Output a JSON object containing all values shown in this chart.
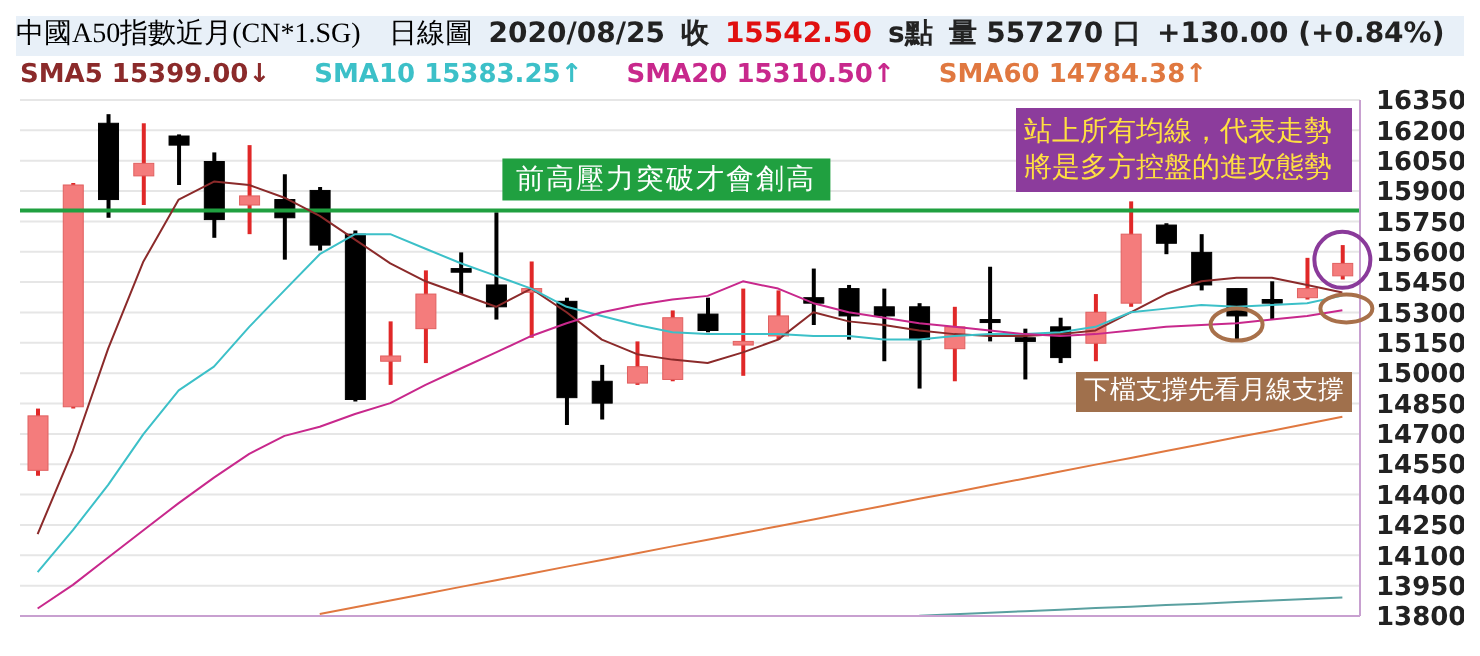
{
  "chart_data": {
    "type": "candlestick",
    "title": "中國A50指數近月(CN*1.SG)",
    "subtitle": "日線圖",
    "annotations": [
      "2020/08/25",
      "收",
      "15542.50",
      "s點",
      "量 557270 口",
      "+130.00 (+0.84%)",
      "站上所有均線，代表走勢將是多方控盤的進攻態勢",
      "下檔支撐先看月線支撐"
    ],
    "categories": [
      null,
      null,
      null,
      null,
      null,
      null,
      null,
      null,
      null,
      null,
      null,
      null,
      null,
      null,
      null,
      null,
      null,
      null,
      null,
      null,
      null,
      null,
      null,
      null,
      null,
      null,
      null,
      null,
      null,
      null,
      null,
      null,
      null,
      null,
      null,
      null,
      null,
      null
    ],
    "ohlc": [
      [
        14520,
        14825,
        14493,
        14789
      ],
      [
        14834,
        15940,
        14825,
        15930
      ],
      [
        16235,
        16280,
        15768,
        15858
      ],
      [
        15975,
        16235,
        15831,
        16037
      ],
      [
        16172,
        16180,
        15930,
        16127
      ],
      [
        16046,
        16091,
        15669,
        15759
      ],
      [
        15831,
        16127,
        15687,
        15876
      ],
      [
        15858,
        15983,
        15561,
        15768
      ],
      [
        15903,
        15920,
        15606,
        15633
      ],
      [
        15687,
        15705,
        14860,
        14870
      ],
      [
        15059,
        15256,
        14942,
        15085
      ],
      [
        15220,
        15508,
        15050,
        15391
      ],
      [
        15517,
        15597,
        15391,
        15499
      ],
      [
        15436,
        15795,
        15265,
        15328
      ],
      [
        15400,
        15552,
        15175,
        15418
      ],
      [
        15355,
        15373,
        14744,
        14879
      ],
      [
        14960,
        15041,
        14771,
        14852
      ],
      [
        14951,
        15157,
        14942,
        15032
      ],
      [
        14969,
        15310,
        14960,
        15274
      ],
      [
        15292,
        15373,
        15202,
        15211
      ],
      [
        15139,
        15418,
        14987,
        15157
      ],
      [
        15184,
        15409,
        15166,
        15283
      ],
      [
        15373,
        15517,
        15238,
        15346
      ],
      [
        15418,
        15436,
        15166,
        15283
      ],
      [
        15328,
        15418,
        15059,
        15283
      ],
      [
        15328,
        15346,
        14924,
        15166
      ],
      [
        15121,
        15328,
        14960,
        15229
      ],
      [
        15265,
        15526,
        15157,
        15256
      ],
      [
        15175,
        15220,
        14969,
        15157
      ],
      [
        15229,
        15274,
        15050,
        15077
      ],
      [
        15148,
        15391,
        15059,
        15301
      ],
      [
        15346,
        15849,
        15328,
        15687
      ],
      [
        15732,
        15741,
        15588,
        15642
      ],
      [
        15597,
        15687,
        15409,
        15436
      ],
      [
        15418,
        15418,
        15166,
        15283
      ],
      [
        15364,
        15454,
        15265,
        15346
      ],
      [
        15373,
        15570,
        15364,
        15418
      ],
      [
        15481,
        15633,
        15463,
        15542.5
      ]
    ],
    "colors": [
      "#f47c7c",
      "#f47c7c",
      "#000000",
      "#f47c7c",
      "#000000",
      "#000000",
      "#f47c7c",
      "#000000",
      "#000000",
      "#000000",
      "#f47c7c",
      "#f47c7c",
      "#000000",
      "#000000",
      "#f47c7c",
      "#000000",
      "#000000",
      "#f47c7c",
      "#f47c7c",
      "#000000",
      "#f47c7c",
      "#f47c7c",
      "#000000",
      "#000000",
      "#000000",
      "#000000",
      "#f47c7c",
      "#000000",
      "#000000",
      "#000000",
      "#f47c7c",
      "#f47c7c",
      "#000000",
      "#000000",
      "#000000",
      "#000000",
      "#f47c7c",
      "#f47c7c"
    ],
    "series": [
      {
        "type": "line",
        "name": "SMA5 15399.00↓",
        "color": "#8b2a2a",
        "values": [
          14205,
          14619,
          15121,
          15552,
          15858,
          15947,
          15930,
          15867,
          15777,
          15660,
          15543,
          15454,
          15391,
          15328,
          15418,
          15301,
          15166,
          15094,
          15067,
          15050,
          15103,
          15166,
          15301,
          15256,
          15238,
          15211,
          15193,
          15184,
          15184,
          15193,
          15211,
          15301,
          15391,
          15454,
          15472,
          15472,
          15436,
          15399
        ]
      },
      {
        "type": "line",
        "name": "SMA10 15383.25↑",
        "color": "#3cc0c8",
        "values": [
          14017,
          14224,
          14448,
          14699,
          14915,
          15032,
          15229,
          15409,
          15588,
          15687,
          15687,
          15615,
          15543,
          15481,
          15418,
          15328,
          15283,
          15238,
          15202,
          15193,
          15193,
          15193,
          15184,
          15184,
          15166,
          15166,
          15184,
          15193,
          15193,
          15202,
          15229,
          15301,
          15319,
          15337,
          15328,
          15337,
          15346,
          15383.25
        ]
      },
      {
        "type": "line",
        "name": "SMA20 15310.50↑",
        "color": "#c8288c",
        "values": [
          13837,
          13954,
          14089,
          14224,
          14358,
          14484,
          14601,
          14690,
          14735,
          14798,
          14852,
          14942,
          15023,
          15103,
          15184,
          15247,
          15301,
          15337,
          15364,
          15382,
          15454,
          15418,
          15346,
          15301,
          15274,
          15247,
          15229,
          15211,
          15193,
          15184,
          15193,
          15211,
          15229,
          15238,
          15247,
          15265,
          15283,
          15310.5
        ]
      },
      {
        "type": "line",
        "name": "SMA60 14784.38↑",
        "color": "#e07840",
        "values": [
          null,
          null,
          null,
          null,
          null,
          null,
          null,
          null,
          13810,
          13843,
          13877,
          13910,
          13944,
          13977,
          14010,
          14044,
          14077,
          14110,
          14144,
          14177,
          14210,
          14244,
          14277,
          14311,
          14345,
          14379,
          14412,
          14446,
          14480,
          14514,
          14548,
          14581,
          14615,
          14649,
          14683,
          14716,
          14750,
          14784.38
        ]
      },
      {
        "type": "line",
        "color": "#5aa0a0",
        "values": [
          null,
          null,
          null,
          null,
          null,
          null,
          null,
          null,
          null,
          null,
          null,
          null,
          null,
          null,
          null,
          null,
          null,
          null,
          null,
          null,
          null,
          null,
          null,
          null,
          null,
          13801,
          13809,
          13816,
          13824,
          13831,
          13839,
          13846,
          13854,
          13861,
          13869,
          13876,
          13884,
          13891
        ]
      }
    ],
    "ref_lines": [
      {
        "axis": "y",
        "value": 15804,
        "label": "前高壓力突破才會創高",
        "color": "#20a040"
      }
    ],
    "ylim": [
      13800,
      16350
    ],
    "yticks": [
      13800,
      13950,
      14100,
      14250,
      14400,
      14550,
      14700,
      14850,
      15000,
      15150,
      15300,
      15450,
      15600,
      15750,
      15900,
      16050,
      16200,
      16350
    ],
    "grid": "y",
    "legend": "top left",
    "tick_labels": "y"
  }
}
